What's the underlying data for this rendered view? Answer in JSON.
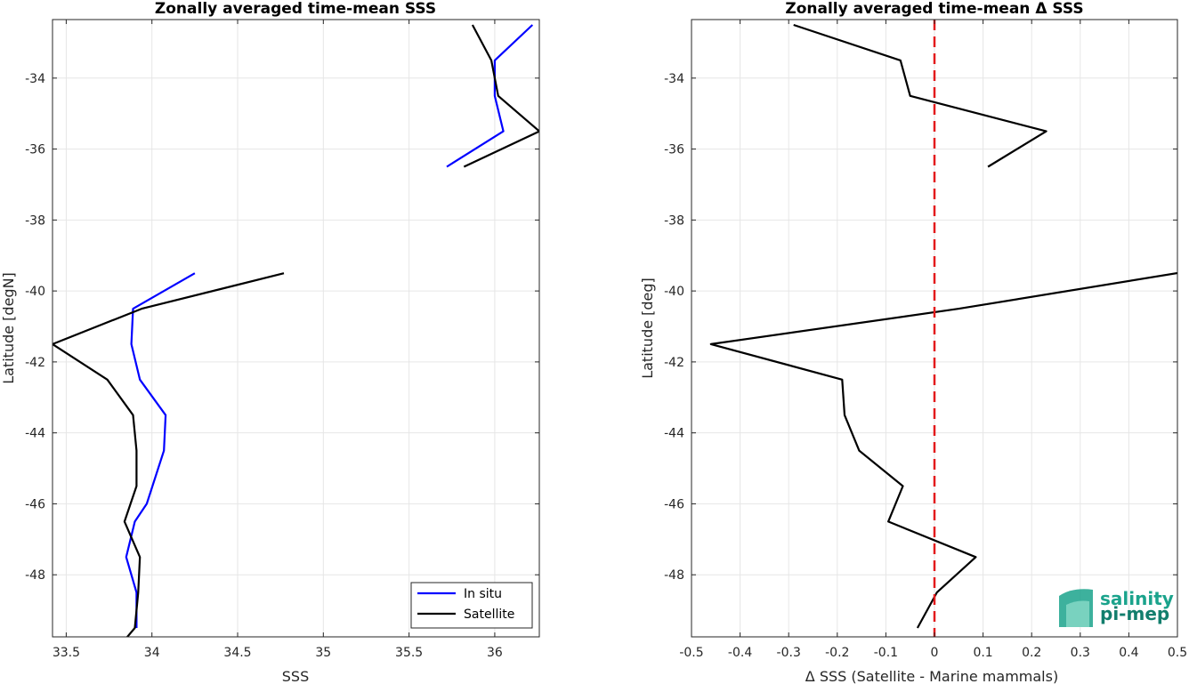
{
  "chart_data": [
    {
      "type": "line",
      "title": "Zonally averaged time-mean SSS",
      "xlabel": "SSS",
      "ylabel": "Latitude [degN]",
      "xlim": [
        33.42,
        36.26
      ],
      "ylim": [
        -49.75,
        -32.35
      ],
      "xticks": [
        33.5,
        34,
        34.5,
        35,
        35.5,
        36
      ],
      "xticklabels": [
        "33.5",
        "34",
        "34.5",
        "35",
        "35.5",
        "36"
      ],
      "yticks": [
        -48,
        -46,
        -44,
        -42,
        -40,
        -38,
        -36,
        -34
      ],
      "yticklabels": [
        "-48",
        "-46",
        "-44",
        "-42",
        "-40",
        "-38",
        "-36",
        "-34"
      ],
      "grid": true,
      "legend": "bottom-right",
      "series": [
        {
          "name": "In situ",
          "color": "#0000ff",
          "segments": [
            [
              [
                36.22,
                -32.5
              ],
              [
                36.0,
                -33.5
              ],
              [
                36.0,
                -34.5
              ],
              [
                36.05,
                -35.5
              ],
              [
                35.72,
                -36.5
              ]
            ],
            [
              [
                34.25,
                -39.5
              ],
              [
                33.89,
                -40.5
              ],
              [
                33.88,
                -41.5
              ],
              [
                33.93,
                -42.5
              ],
              [
                34.08,
                -43.5
              ],
              [
                34.07,
                -44.5
              ],
              [
                33.97,
                -46.0
              ],
              [
                33.9,
                -46.5
              ],
              [
                33.85,
                -47.5
              ],
              [
                33.91,
                -48.5
              ],
              [
                33.91,
                -49.5
              ]
            ]
          ]
        },
        {
          "name": "Satellite",
          "color": "#000000",
          "segments": [
            [
              [
                35.87,
                -32.5
              ],
              [
                35.98,
                -33.5
              ],
              [
                36.02,
                -34.5
              ],
              [
                36.26,
                -35.5
              ],
              [
                35.82,
                -36.5
              ]
            ],
            [
              [
                34.77,
                -39.5
              ],
              [
                33.94,
                -40.5
              ],
              [
                33.42,
                -41.5
              ],
              [
                33.74,
                -42.5
              ],
              [
                33.89,
                -43.5
              ],
              [
                33.91,
                -44.5
              ],
              [
                33.91,
                -45.5
              ],
              [
                33.84,
                -46.5
              ],
              [
                33.93,
                -47.5
              ],
              [
                33.92,
                -48.5
              ],
              [
                33.9,
                -49.5
              ],
              [
                33.83,
                -49.9
              ]
            ]
          ]
        }
      ]
    },
    {
      "type": "line",
      "title": "Zonally averaged time-mean Δ SSS",
      "xlabel": "Δ SSS (Satellite - Marine mammals)",
      "ylabel": "Latitude [deg]",
      "xlim": [
        -0.5,
        0.5
      ],
      "ylim": [
        -49.75,
        -32.35
      ],
      "xticks": [
        -0.5,
        -0.4,
        -0.3,
        -0.2,
        -0.1,
        0,
        0.1,
        0.2,
        0.3,
        0.4,
        0.5
      ],
      "xticklabels": [
        "-0.5",
        "-0.4",
        "-0.3",
        "-0.2",
        "-0.1",
        "0",
        "0.1",
        "0.2",
        "0.3",
        "0.4",
        "0.5"
      ],
      "yticks": [
        -48,
        -46,
        -44,
        -42,
        -40,
        -38,
        -36,
        -34
      ],
      "yticklabels": [
        "-48",
        "-46",
        "-44",
        "-42",
        "-40",
        "-38",
        "-36",
        "-34"
      ],
      "grid": true,
      "reference_line": {
        "x": 0,
        "color": "#e31a1c",
        "style": "dashed"
      },
      "series": [
        {
          "color": "#000000",
          "segments": [
            [
              [
                -0.29,
                -32.5
              ],
              [
                -0.07,
                -33.5
              ],
              [
                -0.05,
                -34.5
              ],
              [
                0.23,
                -35.5
              ],
              [
                0.11,
                -36.5
              ]
            ],
            [
              [
                0.52,
                -39.45
              ],
              [
                0.05,
                -40.5
              ],
              [
                -0.46,
                -41.5
              ],
              [
                -0.19,
                -42.5
              ],
              [
                -0.185,
                -43.5
              ],
              [
                -0.155,
                -44.5
              ],
              [
                -0.065,
                -45.5
              ],
              [
                -0.095,
                -46.5
              ],
              [
                0.085,
                -47.5
              ],
              [
                0.005,
                -48.5
              ],
              [
                -0.035,
                -49.5
              ]
            ]
          ]
        }
      ]
    }
  ],
  "logo": {
    "line1": "salinity",
    "line2": "pi-mep"
  }
}
